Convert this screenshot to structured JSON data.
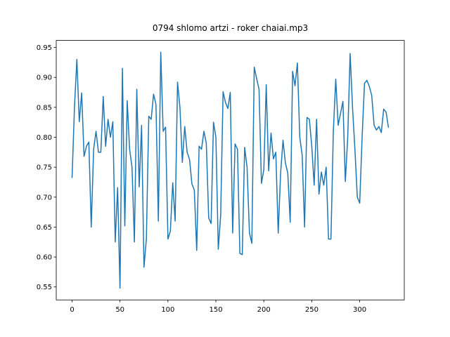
{
  "chart_data": {
    "type": "line",
    "title": "0794 shlomo artzi - roker chaiai.mp3",
    "x": [
      0,
      2.5,
      5,
      7.5,
      10,
      12.5,
      15,
      17.5,
      20,
      22.5,
      25,
      27.5,
      30,
      32.5,
      35,
      37.5,
      40,
      42.5,
      45,
      47.5,
      50,
      52.5,
      55,
      57.5,
      60,
      62.5,
      65,
      67.5,
      70,
      72.5,
      75,
      77.5,
      80,
      82.5,
      85,
      87.5,
      90,
      92.5,
      95,
      97.5,
      100,
      102.5,
      105,
      107.5,
      110,
      112.5,
      115,
      117.5,
      120,
      122.5,
      125,
      127.5,
      130,
      132.5,
      135,
      137.5,
      140,
      142.5,
      145,
      147.5,
      150,
      152.5,
      155,
      157.5,
      160,
      162.5,
      165,
      167.5,
      170,
      172.5,
      175,
      177.5,
      180,
      182.5,
      185,
      187.5,
      190,
      192.5,
      195,
      197.5,
      200,
      202.5,
      205,
      207.5,
      210,
      212.5,
      215,
      217.5,
      220,
      222.5,
      225,
      227.5,
      230,
      232.5,
      235,
      237.5,
      240,
      242.5,
      245,
      247.5,
      250,
      252.5,
      255,
      257.5,
      260,
      262.5,
      265,
      267.5,
      270,
      272.5,
      275,
      277.5,
      280,
      282.5,
      285,
      287.5,
      290,
      292.5,
      295,
      297.5,
      300,
      302.5,
      305,
      307.5,
      310,
      312.5,
      315,
      317.5,
      320,
      322.5,
      325,
      327.5,
      330
    ],
    "series": [
      {
        "color": "#1f77b4",
        "values": [
          0.732,
          0.85,
          0.93,
          0.826,
          0.874,
          0.768,
          0.785,
          0.792,
          0.65,
          0.78,
          0.81,
          0.775,
          0.775,
          0.868,
          0.785,
          0.83,
          0.8,
          0.826,
          0.625,
          0.716,
          0.548,
          0.915,
          0.652,
          0.861,
          0.78,
          0.75,
          0.625,
          0.88,
          0.717,
          0.82,
          0.583,
          0.63,
          0.835,
          0.83,
          0.872,
          0.855,
          0.66,
          0.942,
          0.81,
          0.817,
          0.63,
          0.643,
          0.724,
          0.66,
          0.892,
          0.85,
          0.758,
          0.818,
          0.775,
          0.763,
          0.722,
          0.712,
          0.611,
          0.785,
          0.78,
          0.81,
          0.79,
          0.665,
          0.656,
          0.825,
          0.8,
          0.613,
          0.67,
          0.876,
          0.858,
          0.848,
          0.875,
          0.64,
          0.789,
          0.78,
          0.606,
          0.604,
          0.783,
          0.75,
          0.64,
          0.623,
          0.917,
          0.898,
          0.88,
          0.723,
          0.746,
          0.888,
          0.744,
          0.807,
          0.764,
          0.775,
          0.64,
          0.74,
          0.795,
          0.757,
          0.74,
          0.658,
          0.91,
          0.886,
          0.924,
          0.8,
          0.77,
          0.65,
          0.833,
          0.83,
          0.785,
          0.72,
          0.83,
          0.705,
          0.742,
          0.72,
          0.75,
          0.63,
          0.63,
          0.81,
          0.897,
          0.82,
          0.84,
          0.86,
          0.726,
          0.8,
          0.94,
          0.85,
          0.78,
          0.7,
          0.69,
          0.8,
          0.89,
          0.895,
          0.885,
          0.87,
          0.82,
          0.812,
          0.818,
          0.808,
          0.847,
          0.842,
          0.816
        ]
      }
    ],
    "xlim": [
      -16.5,
      346.5
    ],
    "ylim": [
      0.5283,
      0.9617
    ],
    "xticks": [
      0,
      50,
      100,
      150,
      200,
      250,
      300
    ],
    "yticks": [
      0.55,
      {
        "value": 0.6,
        "label": "0.60"
      },
      0.65,
      {
        "value": 0.7,
        "label": "0.70"
      },
      0.75,
      {
        "value": 0.8,
        "label": "0.80"
      },
      0.85,
      {
        "value": 0.9,
        "label": "0.90"
      },
      0.95
    ]
  }
}
